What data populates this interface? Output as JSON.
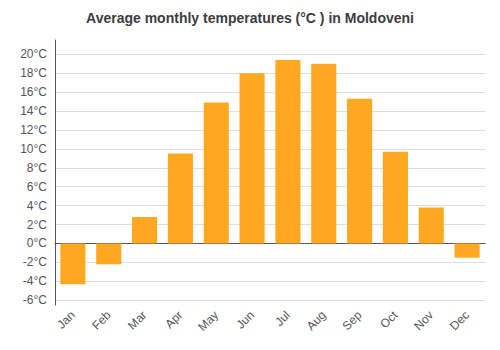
{
  "chart_data": {
    "type": "bar",
    "title": "Average monthly temperatures (°C ) in Moldoveni",
    "categories": [
      "Jan",
      "Feb",
      "Mar",
      "Apr",
      "May",
      "Jun",
      "Jul",
      "Aug",
      "Sep",
      "Oct",
      "Nov",
      "Dec"
    ],
    "values": [
      -4.3,
      -2.2,
      2.8,
      9.5,
      14.9,
      18.0,
      19.4,
      19.0,
      15.3,
      9.7,
      3.8,
      -1.5
    ],
    "color": "#FFA820",
    "ylim": [
      -6.5,
      21.5
    ],
    "yticks": [
      {
        "value": -6,
        "label": "-6°C"
      },
      {
        "value": -4,
        "label": "-4°C"
      },
      {
        "value": -2,
        "label": "-2°C"
      },
      {
        "value": 0,
        "label": "0°C"
      },
      {
        "value": 2,
        "label": "2°C"
      },
      {
        "value": 4,
        "label": "4°C"
      },
      {
        "value": 6,
        "label": "6°C"
      },
      {
        "value": 8,
        "label": "8°C"
      },
      {
        "value": 10,
        "label": "10°C"
      },
      {
        "value": 12,
        "label": "12°C"
      },
      {
        "value": 14,
        "label": "14°C"
      },
      {
        "value": 16,
        "label": "16°C"
      },
      {
        "value": 18,
        "label": "18°C"
      },
      {
        "value": 20,
        "label": "20°C"
      }
    ],
    "grid": true
  }
}
